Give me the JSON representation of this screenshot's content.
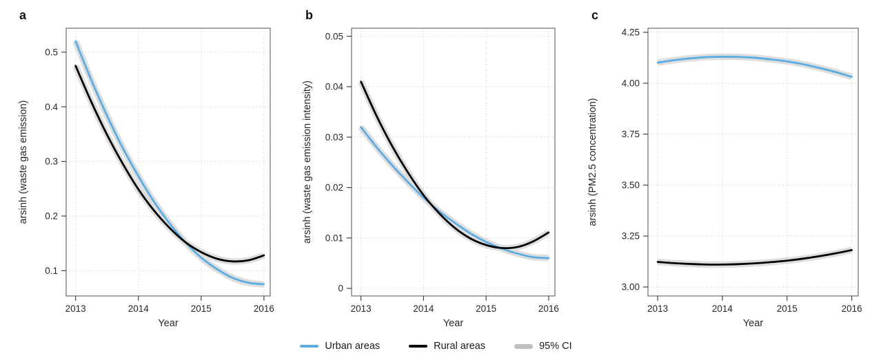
{
  "page": {
    "background": "#ffffff"
  },
  "colors": {
    "urban": "#5AACE3",
    "rural": "#000000",
    "ci_band": "#DEDEDE",
    "ci_legend": "#BDBDBD",
    "grid": "#C9C9C9",
    "frame": "#777777",
    "tick_mark": "#3F3F3F",
    "tick_label": "#262626",
    "axis_label": "#262626"
  },
  "legend": {
    "items": [
      {
        "label": "Urban areas",
        "swatch": "line",
        "color": "#5AACE3"
      },
      {
        "label": "Rural areas",
        "swatch": "line",
        "color": "#000000"
      },
      {
        "label": "95% CI",
        "swatch": "band",
        "color": "#BDBDBD"
      }
    ]
  },
  "chart_data": [
    {
      "type": "line",
      "letter": "a",
      "xlabel": "Year",
      "ylabel": "arsinh (waste gas emission)",
      "x": [
        2013,
        2013.25,
        2013.5,
        2013.75,
        2014,
        2014.25,
        2014.5,
        2014.75,
        2015,
        2015.25,
        2015.5,
        2015.75,
        2016
      ],
      "series": [
        {
          "name": "Urban areas",
          "color_key": "urban",
          "values": [
            0.52,
            0.449,
            0.384,
            0.325,
            0.273,
            0.226,
            0.186,
            0.152,
            0.124,
            0.103,
            0.087,
            0.078,
            0.075
          ]
        },
        {
          "name": "Rural areas",
          "color_key": "rural",
          "values": [
            0.475,
            0.409,
            0.349,
            0.296,
            0.249,
            0.21,
            0.178,
            0.152,
            0.134,
            0.122,
            0.117,
            0.119,
            0.128
          ]
        }
      ],
      "ci": "95% CI band around each line",
      "xticks": [
        2013,
        2014,
        2015,
        2016
      ],
      "xtick_labels": [
        "2013",
        "2014",
        "2015",
        "2016"
      ],
      "yticks": [
        0.5,
        0.4,
        0.3,
        0.2,
        0.1
      ],
      "ytick_labels": [
        "0.5",
        "0.4",
        "0.3",
        "0.2",
        "0.1"
      ],
      "xlim": [
        2012.85,
        2016.1
      ],
      "ylim": [
        0.0538,
        0.5438
      ],
      "grid": "dotted"
    },
    {
      "type": "line",
      "letter": "b",
      "xlabel": "Year",
      "ylabel": "arsinh (waste gas emission intensity)",
      "x": [
        2013,
        2013.25,
        2013.5,
        2013.75,
        2014,
        2014.25,
        2014.5,
        2014.75,
        2015,
        2015.25,
        2015.5,
        2015.75,
        2016
      ],
      "series": [
        {
          "name": "Urban areas",
          "color_key": "urban",
          "values": [
            0.032,
            0.028,
            0.0244,
            0.0211,
            0.018,
            0.0153,
            0.013,
            0.0109,
            0.0092,
            0.0079,
            0.0069,
            0.0062,
            0.006
          ]
        },
        {
          "name": "Rural areas",
          "color_key": "rural",
          "values": [
            0.041,
            0.0342,
            0.0282,
            0.023,
            0.0185,
            0.0149,
            0.012,
            0.0099,
            0.0086,
            0.008,
            0.0082,
            0.0093,
            0.0111
          ]
        }
      ],
      "ci": "95% CI band around each line",
      "xticks": [
        2013,
        2014,
        2015,
        2016
      ],
      "xtick_labels": [
        "2013",
        "2014",
        "2015",
        "2016"
      ],
      "yticks": [
        0.05,
        0.04,
        0.03,
        0.02,
        0.01,
        0
      ],
      "ytick_labels": [
        "0.05",
        "0.04",
        "0.03",
        "0.02",
        "0.01",
        "0"
      ],
      "xlim": [
        2012.85,
        2016.1
      ],
      "ylim": [
        -0.0015,
        0.0516
      ],
      "grid": "dotted"
    },
    {
      "type": "line",
      "letter": "c",
      "xlabel": "Year",
      "ylabel": "arsinh (PM2.5 concentration)",
      "x": [
        2013,
        2013.25,
        2013.5,
        2013.75,
        2014,
        2014.25,
        2014.5,
        2014.75,
        2015,
        2015.25,
        2015.5,
        2015.75,
        2016
      ],
      "series": [
        {
          "name": "Urban areas",
          "color_key": "urban",
          "values": [
            4.101,
            4.113,
            4.122,
            4.128,
            4.13,
            4.129,
            4.125,
            4.117,
            4.107,
            4.093,
            4.075,
            4.055,
            4.031
          ]
        },
        {
          "name": "Rural areas",
          "color_key": "rural",
          "values": [
            3.123,
            3.117,
            3.113,
            3.11,
            3.11,
            3.112,
            3.116,
            3.122,
            3.129,
            3.139,
            3.151,
            3.165,
            3.181
          ]
        }
      ],
      "ci": "95% CI band around each line",
      "xticks": [
        2013,
        2014,
        2015,
        2016
      ],
      "xtick_labels": [
        "2013",
        "2014",
        "2015",
        "2016"
      ],
      "yticks": [
        4.25,
        4.0,
        3.75,
        3.5,
        3.25,
        3.0
      ],
      "ytick_labels": [
        "4.25",
        "4.00",
        "3.75",
        "3.50",
        "3.25",
        "3.00"
      ],
      "xlim": [
        2012.85,
        2016.1
      ],
      "ylim": [
        2.956,
        4.27
      ],
      "grid": "dotted"
    }
  ]
}
